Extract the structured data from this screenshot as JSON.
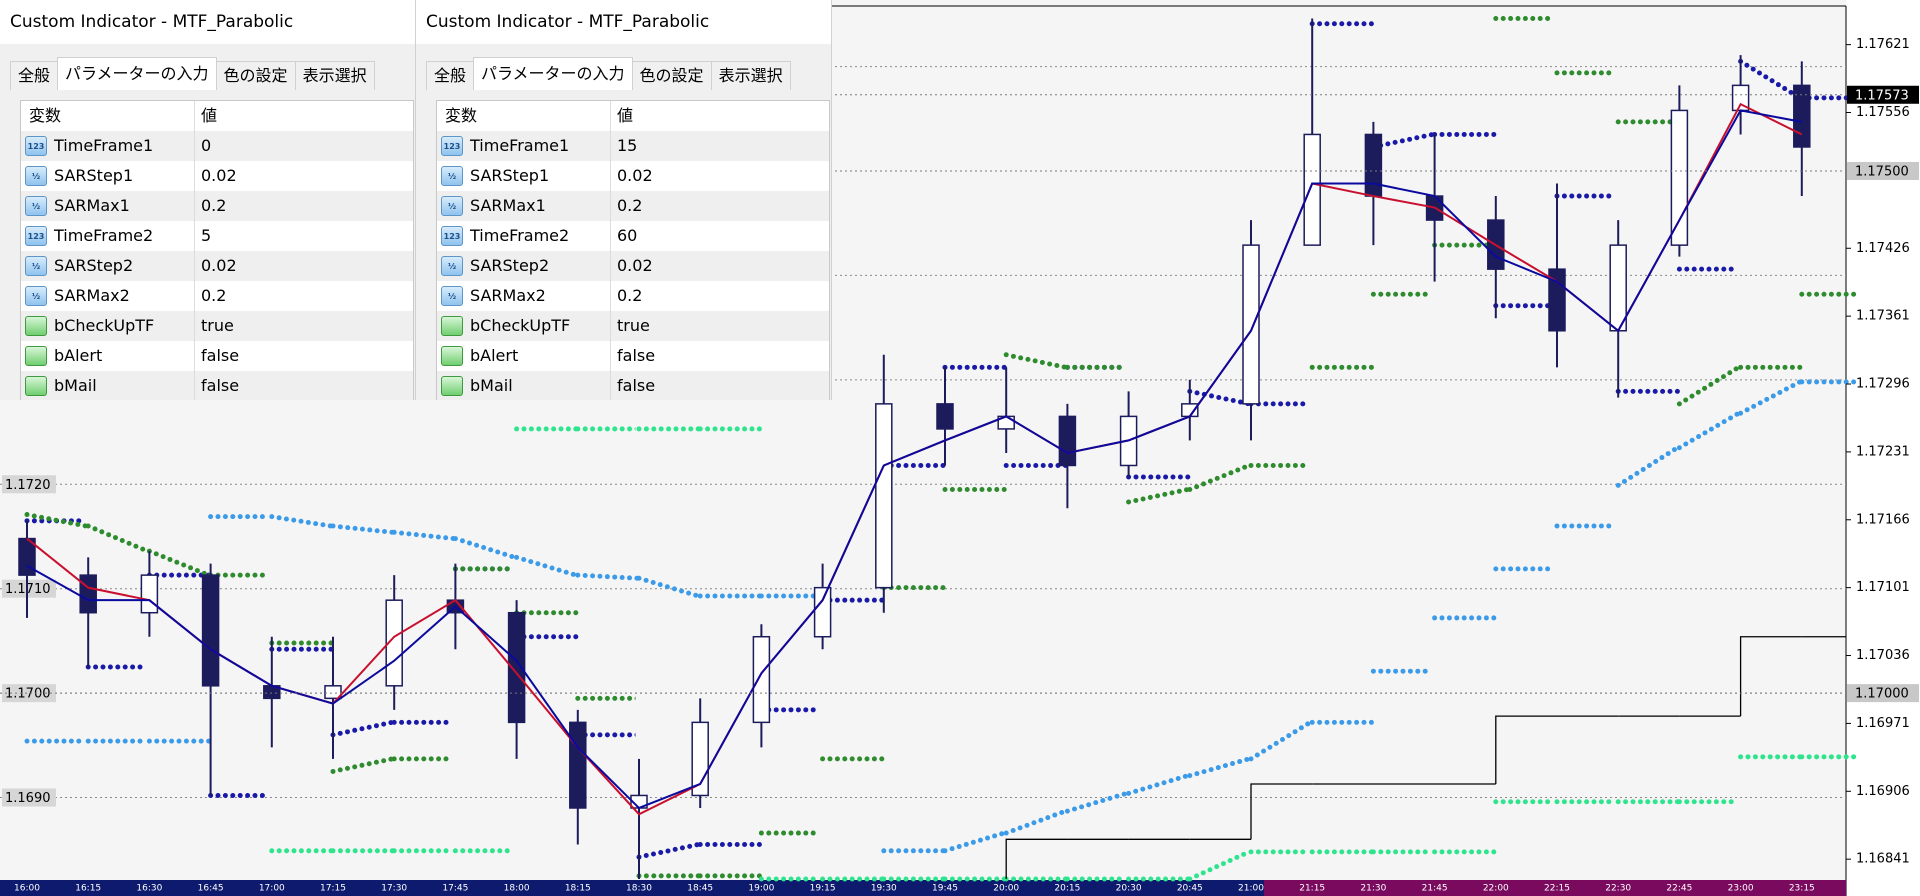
{
  "dialogs": [
    {
      "title": "Custom Indicator - MTF_Parabolic",
      "tabs": [
        "全般",
        "パラメーターの入力",
        "色の設定",
        "表示選択"
      ],
      "active_tab": 1,
      "header": [
        "変数",
        "値"
      ],
      "rows": [
        {
          "icon": "123",
          "name": "TimeFrame1",
          "value": "0"
        },
        {
          "icon": "½",
          "name": "SARStep1",
          "value": "0.02"
        },
        {
          "icon": "½",
          "name": "SARMax1",
          "value": "0.2"
        },
        {
          "icon": "123",
          "name": "TimeFrame2",
          "value": "5"
        },
        {
          "icon": "½",
          "name": "SARStep2",
          "value": "0.02"
        },
        {
          "icon": "½",
          "name": "SARMax2",
          "value": "0.2"
        },
        {
          "name": "bCheckUpTF",
          "value": "true"
        },
        {
          "name": "bAlert",
          "value": "false"
        },
        {
          "name": "bMail",
          "value": "false"
        }
      ]
    },
    {
      "title": "Custom Indicator - MTF_Parabolic",
      "tabs": [
        "全般",
        "パラメーターの入力",
        "色の設定",
        "表示選択"
      ],
      "active_tab": 1,
      "header": [
        "変数",
        "値"
      ],
      "rows": [
        {
          "icon": "123",
          "name": "TimeFrame1",
          "value": "15"
        },
        {
          "icon": "½",
          "name": "SARStep1",
          "value": "0.02"
        },
        {
          "icon": "½",
          "name": "SARMax1",
          "value": "0.2"
        },
        {
          "icon": "123",
          "name": "TimeFrame2",
          "value": "60"
        },
        {
          "icon": "½",
          "name": "SARStep2",
          "value": "0.02"
        },
        {
          "icon": "½",
          "name": "SARMax2",
          "value": "0.2"
        },
        {
          "name": "bCheckUpTF",
          "value": "true"
        },
        {
          "name": "bAlert",
          "value": "false"
        },
        {
          "name": "bMail",
          "value": "false"
        }
      ]
    }
  ],
  "chart_data": {
    "type": "candlestick",
    "categories": [
      "16:00",
      "16:15",
      "16:30",
      "16:45",
      "17:00",
      "17:15",
      "17:30",
      "17:45",
      "18:00",
      "18:15",
      "18:30",
      "18:45",
      "19:00",
      "19:15",
      "19:30",
      "19:45",
      "20:00",
      "20:15",
      "20:30",
      "20:45",
      "21:00",
      "21:15",
      "21:30",
      "21:45",
      "22:00",
      "22:15",
      "22:30",
      "22:45",
      "23:00",
      "23:15"
    ],
    "open": [
      1.17148,
      1.17113,
      1.17077,
      1.17113,
      1.17007,
      1.16995,
      1.17007,
      1.17089,
      1.17077,
      1.16972,
      1.1689,
      1.16902,
      1.16972,
      1.17054,
      1.17101,
      1.17277,
      1.17253,
      1.17265,
      1.17218,
      1.17265,
      1.17277,
      1.17429,
      1.17535,
      1.17476,
      1.17453,
      1.17406,
      1.17347,
      1.17429,
      1.17558,
      1.17582
    ],
    "high": [
      1.17165,
      1.1713,
      1.17136,
      1.17124,
      1.17054,
      1.17054,
      1.17113,
      1.17124,
      1.17089,
      1.16984,
      1.16937,
      1.16995,
      1.17066,
      1.17124,
      1.17324,
      1.17312,
      1.17312,
      1.17277,
      1.17289,
      1.173,
      1.17453,
      1.17646,
      1.17547,
      1.17535,
      1.17476,
      1.17488,
      1.17453,
      1.17582,
      1.17611,
      1.17605
    ],
    "low": [
      1.17072,
      1.17025,
      1.17054,
      1.16902,
      1.16948,
      1.16937,
      1.16984,
      1.17042,
      1.16937,
      1.16855,
      1.16822,
      1.1689,
      1.16948,
      1.17042,
      1.17077,
      1.17218,
      1.1723,
      1.17177,
      1.17207,
      1.17242,
      1.17242,
      1.17429,
      1.17429,
      1.17394,
      1.17359,
      1.17312,
      1.17283,
      1.17418,
      1.17535,
      1.17476
    ],
    "close": [
      1.17113,
      1.17077,
      1.17113,
      1.17007,
      1.16995,
      1.17007,
      1.17089,
      1.17077,
      1.16972,
      1.1689,
      1.16902,
      1.16972,
      1.17054,
      1.17101,
      1.17277,
      1.17253,
      1.17265,
      1.17218,
      1.17265,
      1.17277,
      1.17429,
      1.17535,
      1.17476,
      1.17453,
      1.17406,
      1.17347,
      1.17429,
      1.17558,
      1.17582,
      1.17523
    ],
    "bull_color": "#ffffff",
    "bear_color": "#1c1c5c",
    "wick_color": "#1c1c5c",
    "series": [
      {
        "type": "line",
        "color": "#c8102e",
        "values": [
          1.17148,
          1.17101,
          1.17089,
          1.17042,
          1.17007,
          1.1699,
          1.17054,
          1.17089,
          1.17019,
          1.16948,
          1.16884,
          1.16913,
          1.17019,
          1.17089,
          1.17218,
          1.17242,
          1.17265,
          1.1723,
          1.17242,
          1.17265,
          1.17347,
          1.17488,
          1.17476,
          1.17465,
          1.17429,
          1.17394,
          1.17347,
          1.17453,
          1.17564,
          1.17535
        ]
      },
      {
        "type": "line",
        "color": "#0a0a9e",
        "values": [
          1.17122,
          1.17089,
          1.17089,
          1.17042,
          1.17007,
          1.1699,
          1.17031,
          1.17083,
          1.17031,
          1.16948,
          1.1689,
          1.16913,
          1.17019,
          1.17089,
          1.17218,
          1.17242,
          1.17265,
          1.1723,
          1.17242,
          1.17265,
          1.17347,
          1.17488,
          1.17488,
          1.17476,
          1.17418,
          1.17394,
          1.17347,
          1.17453,
          1.17558,
          1.17547
        ]
      },
      {
        "type": "dots",
        "color": "#1a1aa8",
        "values": [
          1.17165,
          1.17025,
          1.17113,
          1.16902,
          1.17042,
          1.1696,
          1.16972,
          1.17119,
          1.17054,
          1.1696,
          1.16843,
          1.16855,
          1.16984,
          1.17089,
          1.17218,
          1.17312,
          1.17218,
          1.17312,
          1.17207,
          1.17289,
          1.17277,
          1.17641,
          1.17523,
          1.17535,
          1.17371,
          1.17476,
          1.17289,
          1.17406,
          1.17605,
          1.1757
        ]
      },
      {
        "type": "dots",
        "color": "#2e8b2e",
        "values": [
          1.17171,
          1.1716,
          1.17136,
          1.17113,
          1.17048,
          1.16925,
          1.16937,
          1.17119,
          1.17077,
          1.16995,
          1.16825,
          1.16825,
          1.16866,
          1.16937,
          1.17101,
          1.17195,
          1.17324,
          1.17312,
          1.17183,
          1.17195,
          1.17218,
          1.17312,
          1.17382,
          1.17429,
          1.17646,
          1.17594,
          1.17547,
          1.17277,
          1.17312,
          1.17382
        ]
      },
      {
        "type": "dots",
        "color": "#3c9be8",
        "values": [
          1.16954,
          1.16954,
          1.16954,
          1.17169,
          1.17169,
          1.1716,
          1.17154,
          1.17148,
          1.1713,
          1.17113,
          1.1711,
          1.17093,
          1.17093,
          null,
          1.16849,
          1.16849,
          1.16866,
          1.16887,
          1.16904,
          1.16921,
          1.16937,
          1.16972,
          1.17021,
          1.17072,
          1.17119,
          1.1716,
          1.17199,
          1.17235,
          1.17268,
          1.17298
        ]
      },
      {
        "type": "dots",
        "color": "#2ee58e",
        "values": [
          null,
          null,
          null,
          null,
          1.16849,
          1.16849,
          1.16849,
          1.16849,
          1.17253,
          1.17253,
          1.17253,
          1.17253,
          1.16822,
          1.16822,
          1.16822,
          1.16822,
          1.16822,
          1.16822,
          1.16822,
          1.16822,
          1.16848,
          1.16848,
          1.16848,
          1.16848,
          1.16896,
          1.16896,
          1.16896,
          1.16896,
          1.16939,
          1.16939
        ]
      },
      {
        "type": "step",
        "color": "#000000",
        "values": [
          null,
          null,
          null,
          null,
          null,
          null,
          null,
          null,
          null,
          null,
          null,
          null,
          null,
          null,
          null,
          null,
          1.1686,
          1.1686,
          1.1686,
          1.1686,
          1.16913,
          1.16913,
          1.16913,
          1.16913,
          1.16978,
          1.16978,
          1.16978,
          1.16978,
          1.17054,
          1.17054
        ]
      }
    ],
    "ylim": [
      1.16822,
      1.17658
    ],
    "yticks": [
      1.17621,
      1.17556,
      1.17426,
      1.17361,
      1.17296,
      1.17231,
      1.17166,
      1.17101,
      1.17036,
      1.16971,
      1.16906,
      1.16841
    ],
    "left_ticks": [
      {
        "value": 1.172,
        "label": "1.1720"
      },
      {
        "value": 1.171,
        "label": "1.1710"
      },
      {
        "value": 1.17,
        "label": "1.1700"
      },
      {
        "value": 1.169,
        "label": "1.1690"
      }
    ],
    "grid_levels": [
      1.169,
      1.17,
      1.171,
      1.172,
      1.173,
      1.174,
      1.175,
      1.176
    ],
    "price_markers": [
      {
        "value": 1.17573,
        "color": "#000000",
        "text_color": "#ffffff"
      },
      {
        "value": 1.175,
        "label": "1.17500",
        "color": "#c8c8c8",
        "text_color": "#000000"
      },
      {
        "value": 1.17,
        "label": "1.17000",
        "color": "#c8c8c8",
        "text_color": "#000000"
      }
    ]
  }
}
